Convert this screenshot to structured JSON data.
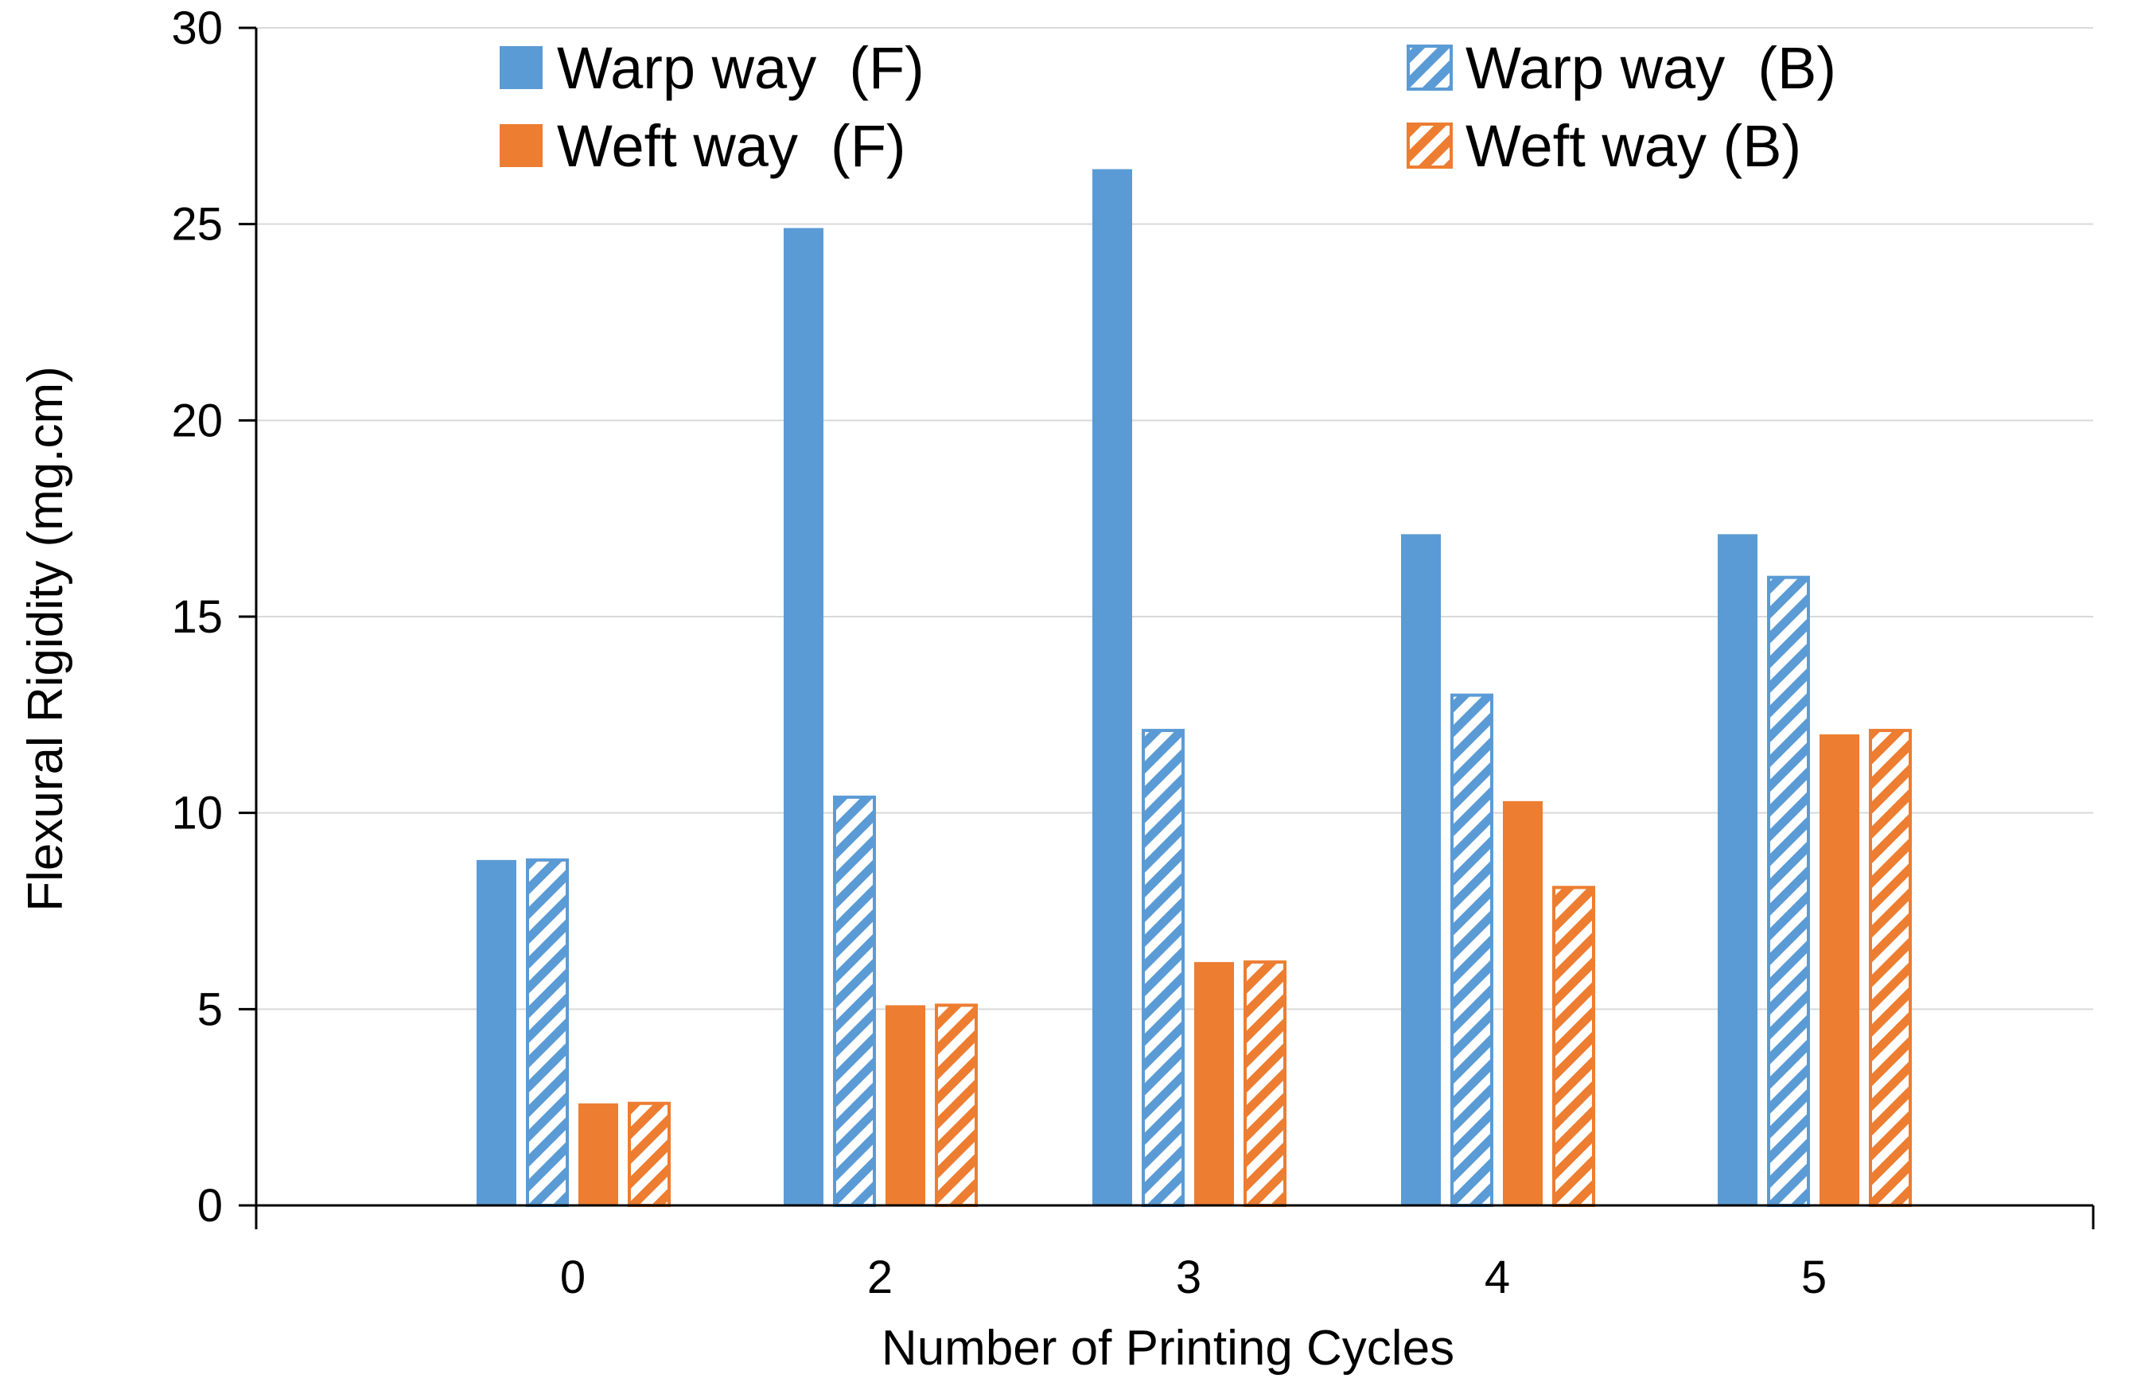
{
  "chart_data": {
    "type": "bar",
    "title": "",
    "xlabel": "Number of Printing Cycles",
    "ylabel": "Flexural Rigidity (mg.cm)",
    "ylim": [
      0,
      30
    ],
    "yticks": [
      0,
      5,
      10,
      15,
      20,
      25,
      30
    ],
    "ytick_labels": [
      "0",
      "5",
      "10",
      "15",
      "20",
      "25",
      "30"
    ],
    "grid": true,
    "legend_position": "top",
    "categories": [
      "0",
      "2",
      "3",
      "4",
      "5"
    ],
    "series": [
      {
        "name": "Warp way  (F)",
        "color": "#5B9BD5",
        "hatched": false,
        "values": [
          8.8,
          24.9,
          26.4,
          17.1,
          17.1
        ]
      },
      {
        "name": "Warp way  (B)",
        "color": "#5B9BD5",
        "hatched": true,
        "values": [
          8.8,
          10.4,
          12.1,
          13.0,
          16.0
        ]
      },
      {
        "name": "Weft way  (F)",
        "color": "#ED7D31",
        "hatched": false,
        "values": [
          2.6,
          5.1,
          6.2,
          10.3,
          12.0
        ]
      },
      {
        "name": "Weft way (B)",
        "color": "#ED7D31",
        "hatched": true,
        "values": [
          2.6,
          5.1,
          6.2,
          8.1,
          12.1
        ]
      }
    ]
  }
}
